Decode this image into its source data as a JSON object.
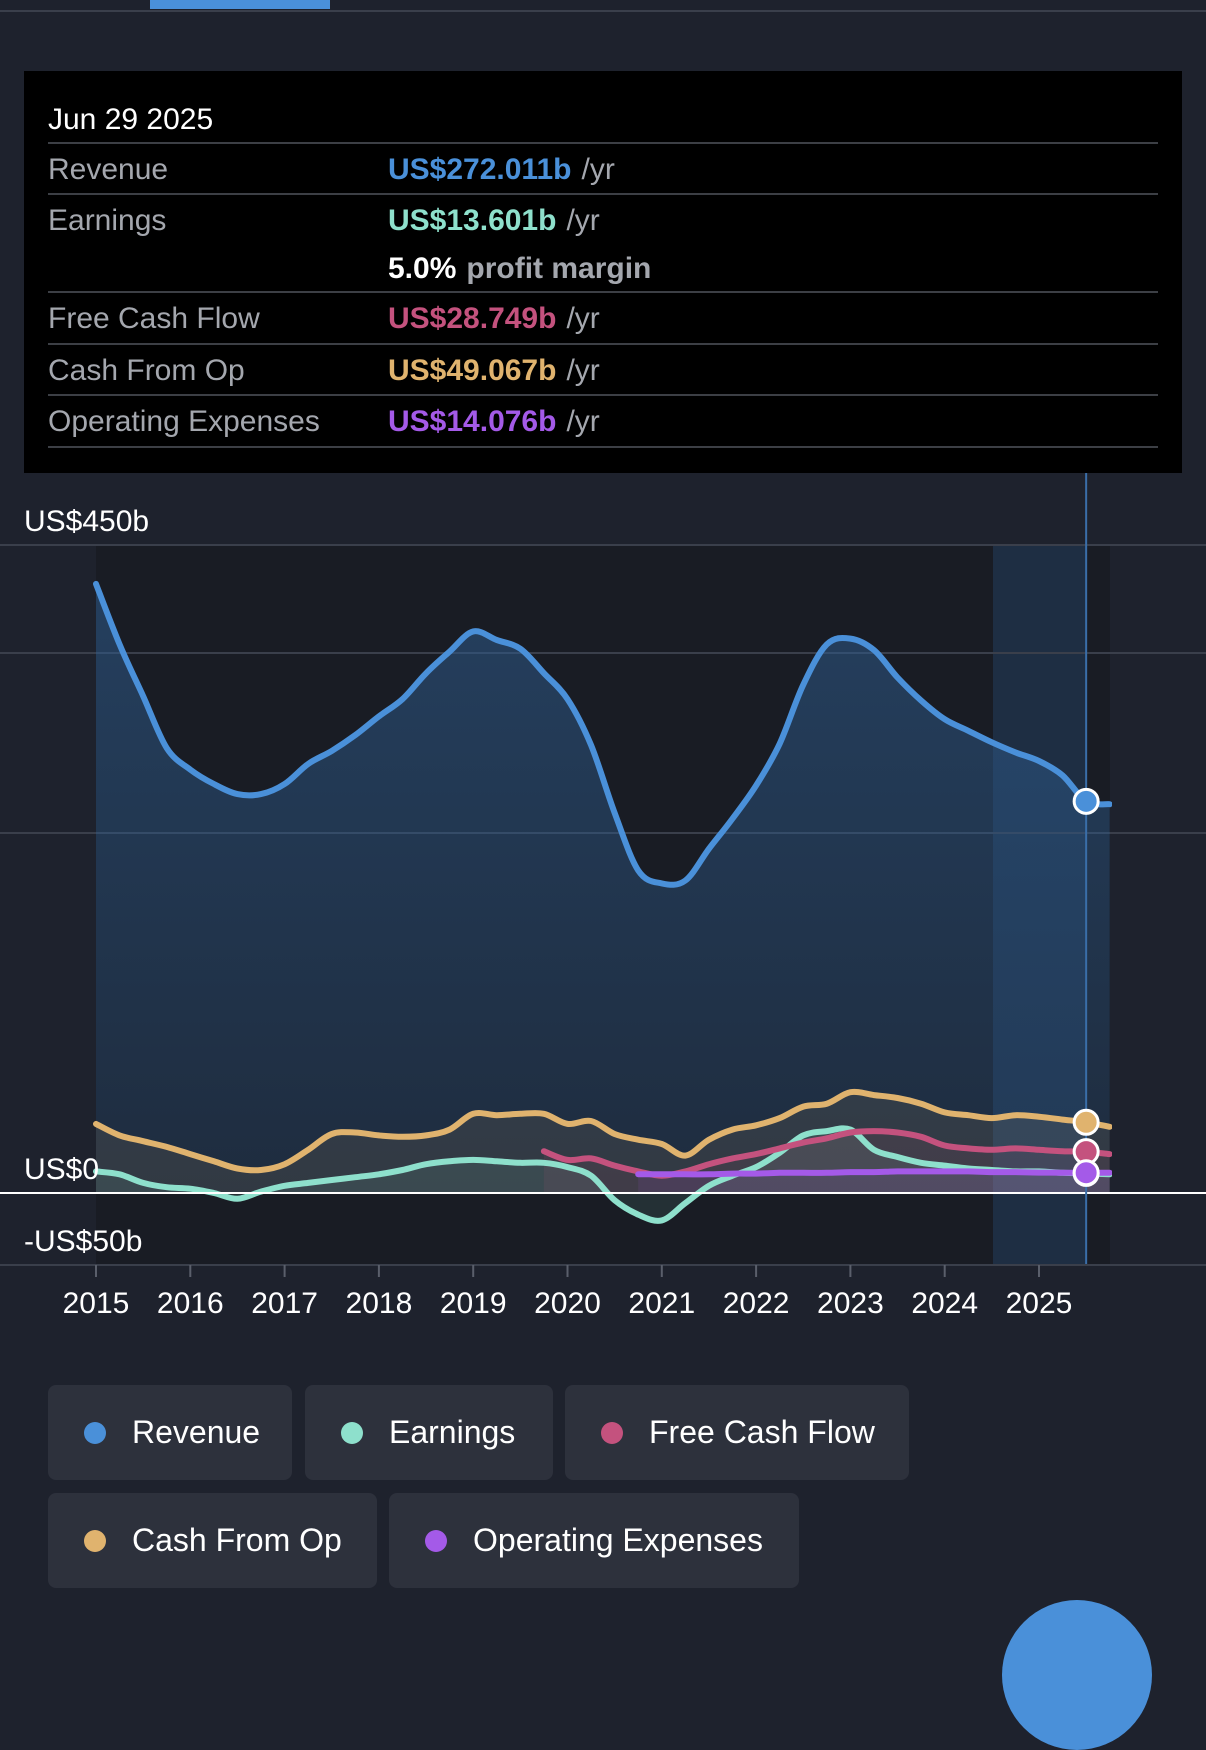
{
  "tooltip": {
    "date": "Jun 29 2025",
    "rows": [
      {
        "label": "Revenue",
        "value": "US$272.011b",
        "unit": "/yr",
        "color": "#4a90d9"
      },
      {
        "label": "Earnings",
        "value": "US$13.601b",
        "unit": "/yr",
        "color": "#8ee0cc"
      },
      {
        "label": "Free Cash Flow",
        "value": "US$28.749b",
        "unit": "/yr",
        "color": "#c4527e"
      },
      {
        "label": "Cash From Op",
        "value": "US$49.067b",
        "unit": "/yr",
        "color": "#e0b36e"
      },
      {
        "label": "Operating Expenses",
        "value": "US$14.076b",
        "unit": "/yr",
        "color": "#a45ae8"
      }
    ],
    "profit_margin_value": "5.0%",
    "profit_margin_label": "profit margin"
  },
  "chart_data": {
    "type": "line",
    "ylim": [
      -50,
      450
    ],
    "y_tick_labels": [
      "US$450b",
      "US$0",
      "-US$50b"
    ],
    "x_tick_labels": [
      "2015",
      "2016",
      "2017",
      "2018",
      "2019",
      "2020",
      "2021",
      "2022",
      "2023",
      "2024",
      "2025"
    ],
    "highlight_date": "Jun 29 2025",
    "series": [
      {
        "name": "Revenue",
        "color": "#4a90d9",
        "points": [
          [
            2015.0,
            423
          ],
          [
            2015.25,
            381
          ],
          [
            2015.5,
            345
          ],
          [
            2015.75,
            309
          ],
          [
            2016.0,
            294
          ],
          [
            2016.25,
            284
          ],
          [
            2016.5,
            277
          ],
          [
            2016.75,
            277
          ],
          [
            2017.0,
            284
          ],
          [
            2017.25,
            298
          ],
          [
            2017.5,
            307
          ],
          [
            2017.75,
            318
          ],
          [
            2018.0,
            331
          ],
          [
            2018.25,
            343
          ],
          [
            2018.5,
            361
          ],
          [
            2018.75,
            376
          ],
          [
            2019.0,
            390
          ],
          [
            2019.25,
            384
          ],
          [
            2019.5,
            378
          ],
          [
            2019.75,
            361
          ],
          [
            2020.0,
            343
          ],
          [
            2020.25,
            311
          ],
          [
            2020.5,
            264
          ],
          [
            2020.75,
            224
          ],
          [
            2021.0,
            215
          ],
          [
            2021.25,
            217
          ],
          [
            2021.5,
            239
          ],
          [
            2021.75,
            260
          ],
          [
            2022.0,
            283
          ],
          [
            2022.25,
            312
          ],
          [
            2022.5,
            353
          ],
          [
            2022.75,
            381
          ],
          [
            2023.0,
            385
          ],
          [
            2023.25,
            377
          ],
          [
            2023.5,
            358
          ],
          [
            2023.75,
            342
          ],
          [
            2024.0,
            329
          ],
          [
            2024.25,
            321
          ],
          [
            2024.5,
            313
          ],
          [
            2024.75,
            306
          ],
          [
            2025.0,
            300
          ],
          [
            2025.25,
            290
          ],
          [
            2025.5,
            272
          ],
          [
            2025.75,
            270
          ]
        ]
      },
      {
        "name": "Earnings",
        "color": "#8ee0cc",
        "points": [
          [
            2015.0,
            15
          ],
          [
            2015.25,
            13
          ],
          [
            2015.5,
            7
          ],
          [
            2015.75,
            4
          ],
          [
            2016.0,
            3
          ],
          [
            2016.25,
            0
          ],
          [
            2016.5,
            -4
          ],
          [
            2016.75,
            1
          ],
          [
            2017.0,
            5
          ],
          [
            2017.25,
            7
          ],
          [
            2017.5,
            9
          ],
          [
            2017.75,
            11
          ],
          [
            2018.0,
            13
          ],
          [
            2018.25,
            16
          ],
          [
            2018.5,
            20
          ],
          [
            2018.75,
            22
          ],
          [
            2019.0,
            23
          ],
          [
            2019.25,
            22
          ],
          [
            2019.5,
            21
          ],
          [
            2019.75,
            21
          ],
          [
            2020.0,
            18
          ],
          [
            2020.25,
            12
          ],
          [
            2020.5,
            -5
          ],
          [
            2020.75,
            -15
          ],
          [
            2021.0,
            -19
          ],
          [
            2021.25,
            -7
          ],
          [
            2021.5,
            5
          ],
          [
            2021.75,
            12
          ],
          [
            2022.0,
            18
          ],
          [
            2022.25,
            28
          ],
          [
            2022.5,
            40
          ],
          [
            2022.75,
            43
          ],
          [
            2023.0,
            44
          ],
          [
            2023.25,
            30
          ],
          [
            2023.5,
            25
          ],
          [
            2023.75,
            21
          ],
          [
            2024.0,
            19
          ],
          [
            2024.25,
            17
          ],
          [
            2024.5,
            16
          ],
          [
            2024.75,
            15
          ],
          [
            2025.0,
            15
          ],
          [
            2025.25,
            14
          ],
          [
            2025.5,
            13.6
          ],
          [
            2025.75,
            13
          ]
        ]
      },
      {
        "name": "Free Cash Flow",
        "color": "#c4527e",
        "points": [
          [
            2019.75,
            29
          ],
          [
            2020.0,
            23
          ],
          [
            2020.25,
            24
          ],
          [
            2020.5,
            19
          ],
          [
            2020.75,
            15
          ],
          [
            2021.0,
            12
          ],
          [
            2021.25,
            15
          ],
          [
            2021.5,
            20
          ],
          [
            2021.75,
            24
          ],
          [
            2022.0,
            27
          ],
          [
            2022.25,
            31
          ],
          [
            2022.5,
            35
          ],
          [
            2022.75,
            38
          ],
          [
            2023.0,
            42
          ],
          [
            2023.25,
            43
          ],
          [
            2023.5,
            42
          ],
          [
            2023.75,
            39
          ],
          [
            2024.0,
            33
          ],
          [
            2024.25,
            31
          ],
          [
            2024.5,
            30
          ],
          [
            2024.75,
            31
          ],
          [
            2025.0,
            30
          ],
          [
            2025.25,
            29
          ],
          [
            2025.5,
            28.7
          ],
          [
            2025.75,
            27
          ]
        ]
      },
      {
        "name": "Cash From Op",
        "color": "#e0b36e",
        "points": [
          [
            2015.0,
            48
          ],
          [
            2015.25,
            40
          ],
          [
            2015.5,
            36
          ],
          [
            2015.75,
            32
          ],
          [
            2016.0,
            27
          ],
          [
            2016.25,
            22
          ],
          [
            2016.5,
            17
          ],
          [
            2016.75,
            16
          ],
          [
            2017.0,
            20
          ],
          [
            2017.25,
            30
          ],
          [
            2017.5,
            41
          ],
          [
            2017.75,
            42
          ],
          [
            2018.0,
            40
          ],
          [
            2018.25,
            39
          ],
          [
            2018.5,
            40
          ],
          [
            2018.75,
            44
          ],
          [
            2019.0,
            55
          ],
          [
            2019.25,
            54
          ],
          [
            2019.5,
            55
          ],
          [
            2019.75,
            55
          ],
          [
            2020.0,
            48
          ],
          [
            2020.25,
            50
          ],
          [
            2020.5,
            41
          ],
          [
            2020.75,
            37
          ],
          [
            2021.0,
            34
          ],
          [
            2021.25,
            26
          ],
          [
            2021.5,
            37
          ],
          [
            2021.75,
            44
          ],
          [
            2022.0,
            47
          ],
          [
            2022.25,
            52
          ],
          [
            2022.5,
            60
          ],
          [
            2022.75,
            62
          ],
          [
            2023.0,
            70
          ],
          [
            2023.25,
            68
          ],
          [
            2023.5,
            66
          ],
          [
            2023.75,
            62
          ],
          [
            2024.0,
            56
          ],
          [
            2024.25,
            54
          ],
          [
            2024.5,
            52
          ],
          [
            2024.75,
            54
          ],
          [
            2025.0,
            53
          ],
          [
            2025.25,
            51
          ],
          [
            2025.5,
            49.1
          ],
          [
            2025.75,
            46
          ]
        ]
      },
      {
        "name": "Operating Expenses",
        "color": "#a45ae8",
        "points": [
          [
            2020.75,
            13
          ],
          [
            2021.0,
            13
          ],
          [
            2021.25,
            13
          ],
          [
            2021.5,
            13
          ],
          [
            2021.75,
            13.5
          ],
          [
            2022.0,
            13.5
          ],
          [
            2022.25,
            14
          ],
          [
            2022.5,
            14
          ],
          [
            2022.75,
            14
          ],
          [
            2023.0,
            14.5
          ],
          [
            2023.25,
            14.5
          ],
          [
            2023.5,
            15
          ],
          [
            2023.75,
            15
          ],
          [
            2024.0,
            15
          ],
          [
            2024.25,
            15
          ],
          [
            2024.5,
            14.5
          ],
          [
            2024.75,
            14.5
          ],
          [
            2025.0,
            14.2
          ],
          [
            2025.25,
            14.1
          ],
          [
            2025.5,
            14.076
          ],
          [
            2025.75,
            14
          ]
        ]
      }
    ]
  },
  "legend": {
    "items": [
      {
        "label": "Revenue",
        "color": "#4a90d9"
      },
      {
        "label": "Earnings",
        "color": "#8ee0cc"
      },
      {
        "label": "Free Cash Flow",
        "color": "#c4527e"
      },
      {
        "label": "Cash From Op",
        "color": "#e0b36e"
      },
      {
        "label": "Operating Expenses",
        "color": "#a45ae8"
      }
    ]
  }
}
